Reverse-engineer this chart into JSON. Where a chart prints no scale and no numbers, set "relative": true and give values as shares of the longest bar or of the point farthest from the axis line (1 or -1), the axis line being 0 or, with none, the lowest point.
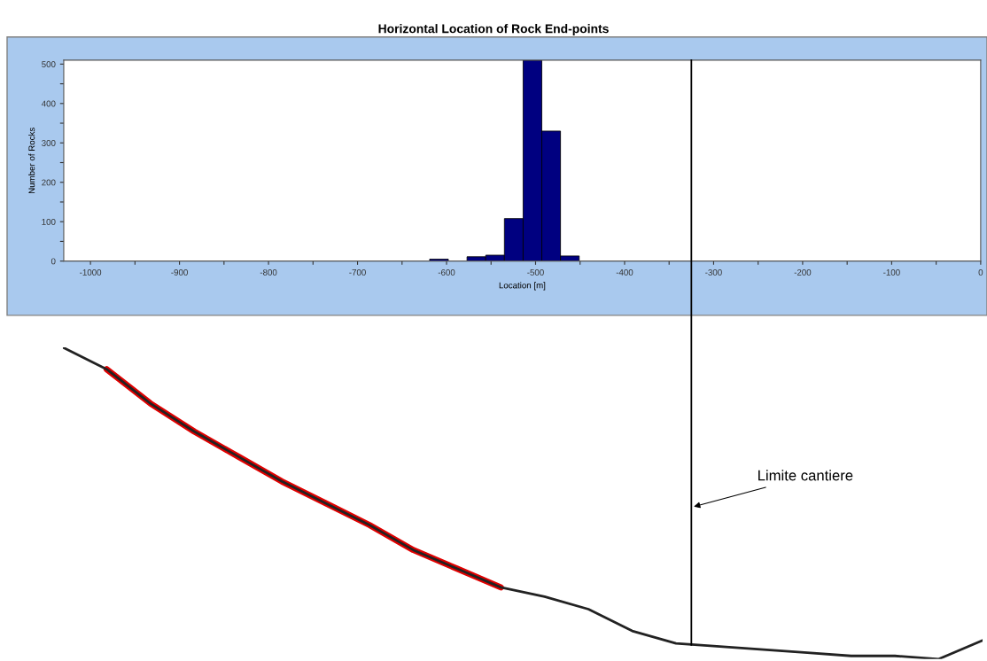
{
  "chart_data": [
    {
      "type": "histogram",
      "title": "Horizontal Location of Rock End-points",
      "xlabel": "Location [m]",
      "ylabel": "Number of Rocks",
      "bins": [
        -619,
        -598,
        -577,
        -556,
        -535,
        -514,
        -493,
        -472,
        -451
      ],
      "values": [
        5,
        0,
        11,
        15,
        108,
        510,
        330,
        13
      ],
      "color": "#000080",
      "xlim": [
        -1030,
        0
      ],
      "ylim": [
        0,
        510
      ],
      "xticks": [
        -1000,
        {
          "value": -950,
          "label": null
        },
        -900,
        {
          "value": -850,
          "label": null
        },
        -800,
        {
          "value": -750,
          "label": null
        },
        -700,
        {
          "value": -650,
          "label": null
        },
        -600,
        {
          "value": -550,
          "label": null
        },
        -500,
        {
          "value": -450,
          "label": null
        },
        -400,
        {
          "value": -350,
          "label": null
        },
        -300,
        {
          "value": -250,
          "label": null
        },
        -200,
        {
          "value": -150,
          "label": null
        },
        -100,
        {
          "value": -50,
          "label": null
        },
        0
      ],
      "yticks": [
        0,
        {
          "value": 50,
          "label": null
        },
        100,
        {
          "value": 150,
          "label": null
        },
        200,
        {
          "value": 250,
          "label": null
        },
        300,
        {
          "value": 350,
          "label": null
        },
        400,
        {
          "value": 450,
          "label": null
        },
        500
      ],
      "ref_lines": [
        {
          "axis": "x",
          "value": -325,
          "color": "#000000"
        }
      ],
      "grid": false
    },
    {
      "type": "line",
      "relative": true,
      "categories": [
        null,
        null,
        null,
        null,
        null,
        null,
        null,
        null,
        null,
        null,
        null,
        null,
        null,
        null,
        null,
        null,
        null,
        null,
        null,
        null,
        null,
        null
      ],
      "series": [
        {
          "color": "#222222",
          "values": [
            1.0,
            0.93,
            0.82,
            0.73,
            0.65,
            0.57,
            0.5,
            0.43,
            0.35,
            0.29,
            0.23,
            0.2,
            0.16,
            0.09,
            0.05,
            0.04,
            0.03,
            0.02,
            0.01,
            0.01,
            0.0,
            0.06
          ]
        },
        {
          "color": "#e00000",
          "values": [
            null,
            0.93,
            0.82,
            0.73,
            0.65,
            0.57,
            0.5,
            0.43,
            0.35,
            0.29,
            0.23,
            null,
            null,
            null,
            null,
            null,
            null,
            null,
            null,
            null,
            null,
            null
          ]
        }
      ],
      "annotations": [
        "Limite cantiere"
      ]
    }
  ]
}
